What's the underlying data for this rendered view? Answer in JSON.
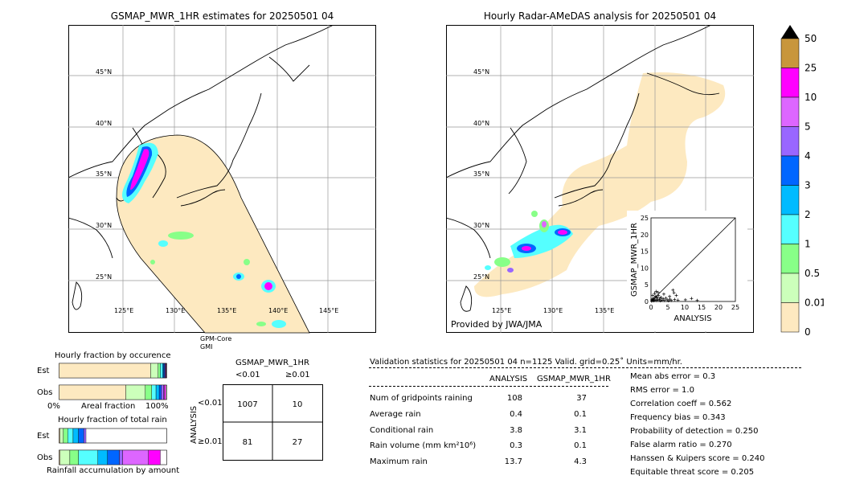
{
  "left_map": {
    "title": "GSMAP_MWR_1HR estimates for 20250501 04",
    "lat_labels": [
      "45°N",
      "40°N",
      "35°N",
      "30°N",
      "25°N"
    ],
    "lon_labels": [
      "125°E",
      "130°E",
      "135°E",
      "140°E",
      "145°E"
    ],
    "footnote_line1": "GPM-Core",
    "footnote_line2": "GMI"
  },
  "right_map": {
    "title": "Hourly Radar-AMeDAS analysis for 20250501 04",
    "lat_labels": [
      "45°N",
      "40°N",
      "35°N",
      "30°N",
      "25°N"
    ],
    "lon_labels": [
      "125°E",
      "130°E",
      "135°E"
    ],
    "credit": "Provided by JWA/JMA"
  },
  "colorbar": {
    "labels": [
      "50",
      "25",
      "10",
      "5",
      "4",
      "3",
      "2",
      "1",
      "0.5",
      "0.01",
      "0"
    ],
    "colors": [
      "#c8963c",
      "#ff00ff",
      "#dd66ff",
      "#9966ff",
      "#0066ff",
      "#00bbff",
      "#55ffff",
      "#88ff88",
      "#ccffbb",
      "#fde9c0"
    ],
    "extend_color": "#000000"
  },
  "chart_data": [
    {
      "type": "scatter",
      "xlabel": "ANALYSIS",
      "ylabel": "GSMAP_MWR_1HR",
      "xlim": [
        0,
        25
      ],
      "ylim": [
        0,
        25
      ],
      "ticks": [
        "0",
        "5",
        "10",
        "15",
        "20",
        "25"
      ],
      "points": [
        [
          0.2,
          0.1
        ],
        [
          0.4,
          0.3
        ],
        [
          0.6,
          0.8
        ],
        [
          0.8,
          0.2
        ],
        [
          1.0,
          1.1
        ],
        [
          1.2,
          0.5
        ],
        [
          1.4,
          1.6
        ],
        [
          1.6,
          0.3
        ],
        [
          1.8,
          1.0
        ],
        [
          2.0,
          0.4
        ],
        [
          2.2,
          1.8
        ],
        [
          2.5,
          0.6
        ],
        [
          2.8,
          0.2
        ],
        [
          3.0,
          1.2
        ],
        [
          3.3,
          0.4
        ],
        [
          3.6,
          0.8
        ],
        [
          4.0,
          0.3
        ],
        [
          4.4,
          1.0
        ],
        [
          4.8,
          0.5
        ],
        [
          5.2,
          0.2
        ],
        [
          5.6,
          0.7
        ],
        [
          6.0,
          0.3
        ],
        [
          6.5,
          3.4
        ],
        [
          7.0,
          0.6
        ],
        [
          7.5,
          1.8
        ],
        [
          8.0,
          0.4
        ],
        [
          0.5,
          1.8
        ],
        [
          1.1,
          2.4
        ],
        [
          1.5,
          3.0
        ],
        [
          2.1,
          2.7
        ],
        [
          3.8,
          2.2
        ],
        [
          5.5,
          1.5
        ],
        [
          6.8,
          2.6
        ],
        [
          10.2,
          0.5
        ],
        [
          12.0,
          0.9
        ],
        [
          0.3,
          0.6
        ],
        [
          0.9,
          0.4
        ],
        [
          1.7,
          1.3
        ],
        [
          2.6,
          1.0
        ],
        [
          13.7,
          0.3
        ]
      ]
    },
    {
      "type": "bar",
      "title": "Hourly fraction by occurence",
      "categories": [
        "Est",
        "Obs"
      ],
      "xlabel": "Areal fraction",
      "x_tick_left": "0%",
      "x_tick_right": "100%",
      "series": [
        {
          "color": "#fde9c0",
          "values": [
            0.85,
            0.62
          ]
        },
        {
          "color": "#ccffbb",
          "values": [
            0.07,
            0.18
          ]
        },
        {
          "color": "#88ff88",
          "values": [
            0.02,
            0.06
          ]
        },
        {
          "color": "#55ffff",
          "values": [
            0.02,
            0.04
          ]
        },
        {
          "color": "#00bbff",
          "values": [
            0.01,
            0.03
          ]
        },
        {
          "color": "#0066ff",
          "values": [
            0.01,
            0.02
          ]
        },
        {
          "color": "#9966ff",
          "values": [
            0.005,
            0.02
          ]
        },
        {
          "color": "#dd66ff",
          "values": [
            0.005,
            0.01
          ]
        },
        {
          "color": "#ff00ff",
          "values": [
            0.005,
            0.01
          ]
        }
      ]
    },
    {
      "type": "bar",
      "title": "Hourly fraction of total rain",
      "categories": [
        "Est",
        "Obs"
      ],
      "xlabel": "Rainfall accumulation by amount",
      "series": [
        {
          "color": "#fde9c0",
          "values": [
            0.01,
            0.01
          ]
        },
        {
          "color": "#ccffbb",
          "values": [
            0.03,
            0.09
          ]
        },
        {
          "color": "#88ff88",
          "values": [
            0.04,
            0.08
          ]
        },
        {
          "color": "#55ffff",
          "values": [
            0.05,
            0.18
          ]
        },
        {
          "color": "#00bbff",
          "values": [
            0.05,
            0.09
          ]
        },
        {
          "color": "#0066ff",
          "values": [
            0.05,
            0.11
          ]
        },
        {
          "color": "#9966ff",
          "values": [
            0.02,
            0.03
          ]
        },
        {
          "color": "#dd66ff",
          "values": [
            0.0,
            0.24
          ]
        },
        {
          "color": "#ff00ff",
          "values": [
            0.0,
            0.11
          ]
        }
      ]
    }
  ],
  "contingency": {
    "title": "GSMAP_MWR_1HR",
    "col_labels": [
      "<0.01",
      "≥0.01"
    ],
    "row_axis": "ANALYSIS",
    "row_labels": [
      "<0.01",
      "≥0.01"
    ],
    "cells": [
      [
        "1007",
        "10"
      ],
      [
        "81",
        "27"
      ]
    ]
  },
  "validation": {
    "header": "Validation statistics for 20250501 04  n=1125 Valid. grid=0.25˚ Units=mm/hr.",
    "col_analysis": "ANALYSIS",
    "col_gsmap": "GSMAP_MWR_1HR",
    "rows": [
      {
        "label": "Num of gridpoints raining",
        "analysis": "108",
        "gsmap": "37"
      },
      {
        "label": "Average rain",
        "analysis": "0.4",
        "gsmap": "0.1"
      },
      {
        "label": "Conditional rain",
        "analysis": "3.8",
        "gsmap": "3.1"
      },
      {
        "label": "Rain volume (mm km²10⁶)",
        "analysis": "0.3",
        "gsmap": "0.1"
      },
      {
        "label": "Maximum rain",
        "analysis": "13.7",
        "gsmap": "4.3"
      }
    ],
    "scores": [
      "Mean abs error =    0.3",
      "RMS error =    1.0",
      "Correlation coeff =  0.562",
      "Frequency bias =  0.343",
      "Probability of detection =  0.250",
      "False alarm ratio =  0.270",
      "Hanssen & Kuipers score =  0.240",
      "Equitable threat score =  0.205"
    ]
  }
}
